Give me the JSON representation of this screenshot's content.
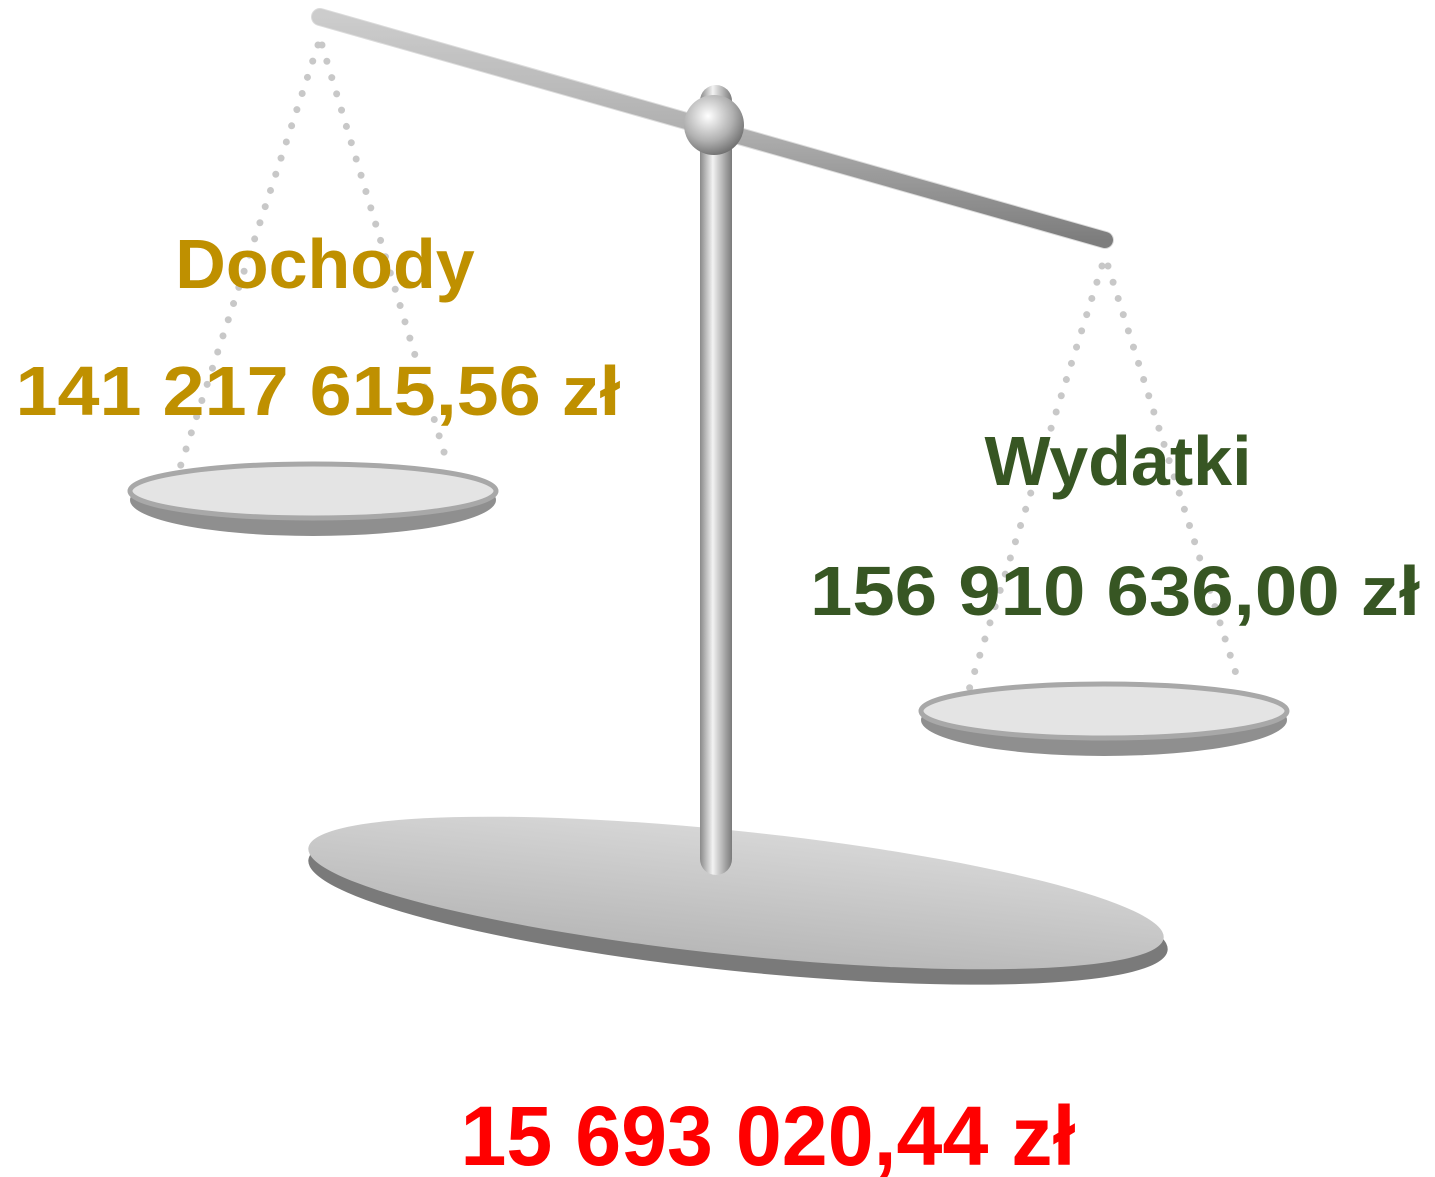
{
  "left": {
    "label": "Dochody",
    "amount": "141 217 615,56 zł"
  },
  "right": {
    "label": "Wydatki",
    "amount": "156 910 636,00 zł"
  },
  "difference": "15 693 020,44 zł"
}
